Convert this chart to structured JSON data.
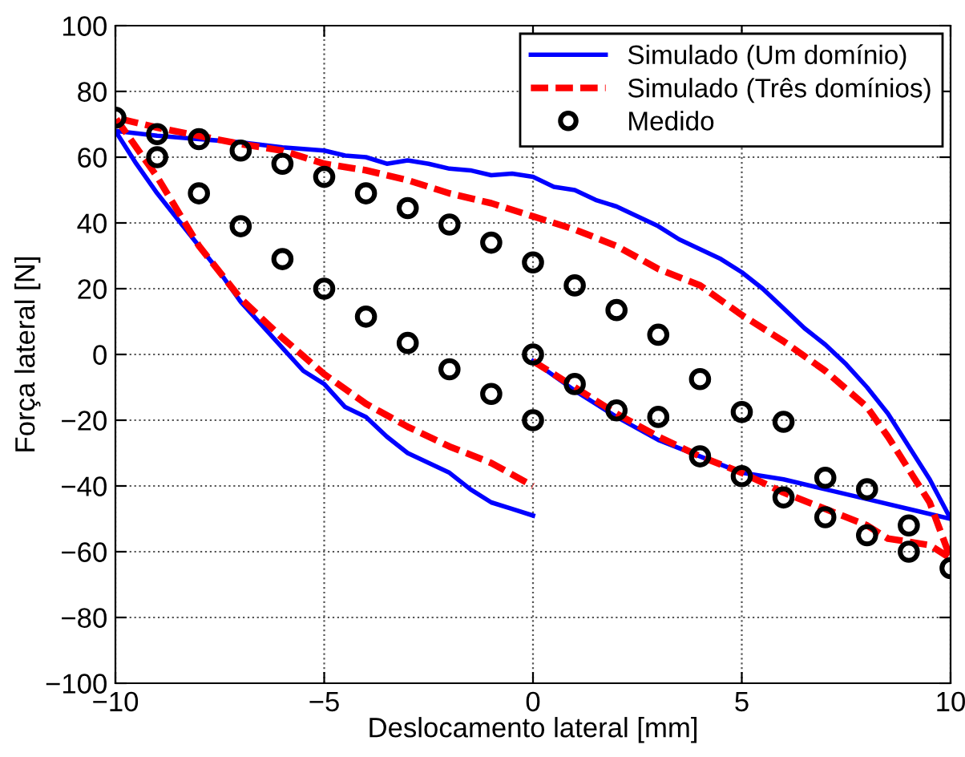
{
  "chart_data": {
    "type": "line",
    "xlabel": "Deslocamento lateral [mm]",
    "ylabel": "Força lateral [N]",
    "xlim": [
      -10,
      10
    ],
    "xticks": [
      -10,
      -5,
      0,
      5,
      10
    ],
    "ylim": [
      -100,
      100
    ],
    "yticks": [
      -100,
      -80,
      -60,
      -40,
      -20,
      0,
      20,
      40,
      60,
      80,
      100
    ],
    "grid": true,
    "legend": "top right",
    "series": [
      {
        "name": "Simulado (Um domínio)",
        "line_style": "solid",
        "color": "#0000ff",
        "x": [
          0,
          1,
          2,
          3,
          4,
          5,
          6,
          7,
          8,
          9,
          10,
          9.5,
          9,
          8.5,
          8,
          7.5,
          7,
          6.5,
          6,
          5.5,
          5,
          4.5,
          4,
          3.5,
          3,
          2.5,
          2,
          1.5,
          1,
          0.5,
          0,
          -0.5,
          -1,
          -1.5,
          -2,
          -2.5,
          -3,
          -3.5,
          -4,
          -4.5,
          -5,
          -6,
          -7,
          -8,
          -9,
          -10,
          -9.5,
          -9,
          -8.5,
          -8,
          -7.5,
          -7,
          -6.5,
          -6,
          -5.5,
          -5,
          -4.5,
          -4,
          -3.5,
          -3,
          -2.5,
          -2,
          -1.5,
          -1,
          -0.5,
          0
        ],
        "values": [
          -2,
          -11,
          -19,
          -26,
          -31,
          -36,
          -38,
          -41,
          -44,
          -47,
          -50,
          -38,
          -28,
          -18,
          -10,
          -3,
          3,
          8,
          14,
          20,
          25,
          29,
          32,
          35,
          39,
          42,
          45,
          47,
          50,
          51,
          54,
          55,
          54.5,
          56,
          56.5,
          58,
          59,
          58,
          60,
          60.5,
          62,
          63,
          64.5,
          65.5,
          66.5,
          68,
          58,
          49,
          41,
          33,
          25,
          16,
          9,
          2,
          -5,
          -9,
          -16,
          -19,
          -25,
          -30,
          -33,
          -36,
          -41,
          -45,
          -47,
          -49
        ]
      },
      {
        "name": "Simulado (Três domínios)",
        "line_style": "dashed",
        "color": "#ff0000",
        "x": [
          0,
          1,
          2,
          3,
          4,
          5,
          6,
          7,
          8,
          8.5,
          9,
          9.5,
          10,
          9.5,
          9,
          8.5,
          8,
          7,
          6,
          5,
          4,
          3,
          2,
          1,
          0,
          -1,
          -2,
          -3,
          -4,
          -5,
          -6,
          -7,
          -8,
          -9,
          -10,
          -9,
          -8,
          -7,
          -6,
          -5,
          -4,
          -3,
          -2,
          -1,
          0
        ],
        "values": [
          -2,
          -10,
          -18,
          -25,
          -31,
          -36,
          -42,
          -47,
          -52,
          -56,
          -57,
          -58,
          -62,
          -45,
          -35,
          -25,
          -16,
          -5,
          4,
          12,
          21,
          26,
          33,
          38,
          42,
          46,
          49,
          53,
          56,
          58,
          62,
          64,
          66.5,
          69,
          72,
          54,
          33,
          17,
          5,
          -6,
          -15,
          -22,
          -28,
          -33,
          -40
        ]
      },
      {
        "name": "Medido",
        "type": "scatter",
        "marker": "circle",
        "color": "#000000",
        "x": [
          -10,
          -9,
          -8,
          -7,
          -6,
          -5,
          -4,
          -3,
          -2,
          -1,
          0,
          1,
          2,
          3,
          4,
          5,
          6,
          7,
          8,
          9,
          10,
          -9,
          -8,
          -7,
          -6,
          -5,
          -4,
          -3,
          -2,
          -1,
          0,
          0,
          1,
          2,
          3,
          4,
          5,
          6,
          7,
          8,
          9
        ],
        "values": [
          72,
          67,
          65.5,
          62,
          58,
          54,
          49,
          44.5,
          39.5,
          34,
          28,
          21,
          13.5,
          6,
          -7.5,
          -17.5,
          -20.5,
          -37.5,
          -41,
          -52,
          -65,
          60,
          49,
          39,
          29,
          20,
          11.5,
          3.5,
          -4.5,
          -12,
          -20,
          0,
          -9,
          -17,
          -19,
          -31,
          -37,
          -43.5,
          -49.5,
          -55,
          -60
        ]
      }
    ]
  }
}
